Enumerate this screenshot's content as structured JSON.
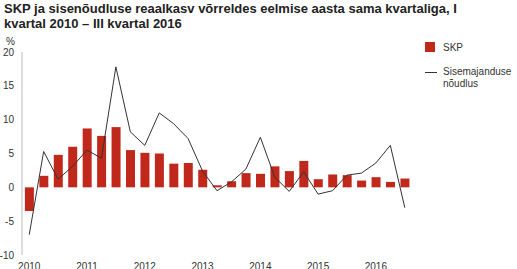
{
  "chart_data": {
    "type": "bar",
    "title": "SKP ja sisenõudluse reaalkasv võrreldes eelmise aasta sama kvartaliga, I kvartal 2010 – III kvartal 2016",
    "y_label": "%",
    "categories": [
      "2010",
      null,
      null,
      null,
      "2011",
      null,
      null,
      null,
      "2012",
      null,
      null,
      null,
      "2013",
      null,
      null,
      null,
      "2014",
      null,
      null,
      null,
      "2015",
      null,
      null,
      null,
      "2016",
      null,
      null
    ],
    "series": [
      {
        "name": "SKP",
        "type": "bar",
        "color": "#c0281c",
        "values": [
          -3.5,
          1.7,
          4.8,
          6.0,
          8.7,
          7.6,
          8.9,
          5.5,
          5.1,
          5.0,
          3.5,
          3.6,
          2.6,
          0.3,
          0.9,
          2.1,
          2.0,
          3.1,
          2.4,
          3.9,
          1.2,
          1.9,
          1.8,
          1.0,
          1.5,
          0.8,
          1.3
        ]
      },
      {
        "name": "Sisemajanduse nõudlus",
        "type": "line",
        "color": "#333333",
        "values": [
          -7.0,
          5.3,
          1.2,
          3.1,
          5.5,
          4.3,
          17.8,
          8.2,
          6.2,
          11.0,
          9.4,
          7.2,
          2.4,
          -0.5,
          0.8,
          2.7,
          7.4,
          1.5,
          -0.6,
          2.3,
          -1.0,
          -0.5,
          1.8,
          2.1,
          3.6,
          6.2,
          -3.0
        ]
      }
    ],
    "ylim": [
      -10,
      20
    ],
    "yticks": [
      -10,
      -5,
      0,
      5,
      10,
      15,
      20
    ],
    "grid": false,
    "legend": "right"
  }
}
